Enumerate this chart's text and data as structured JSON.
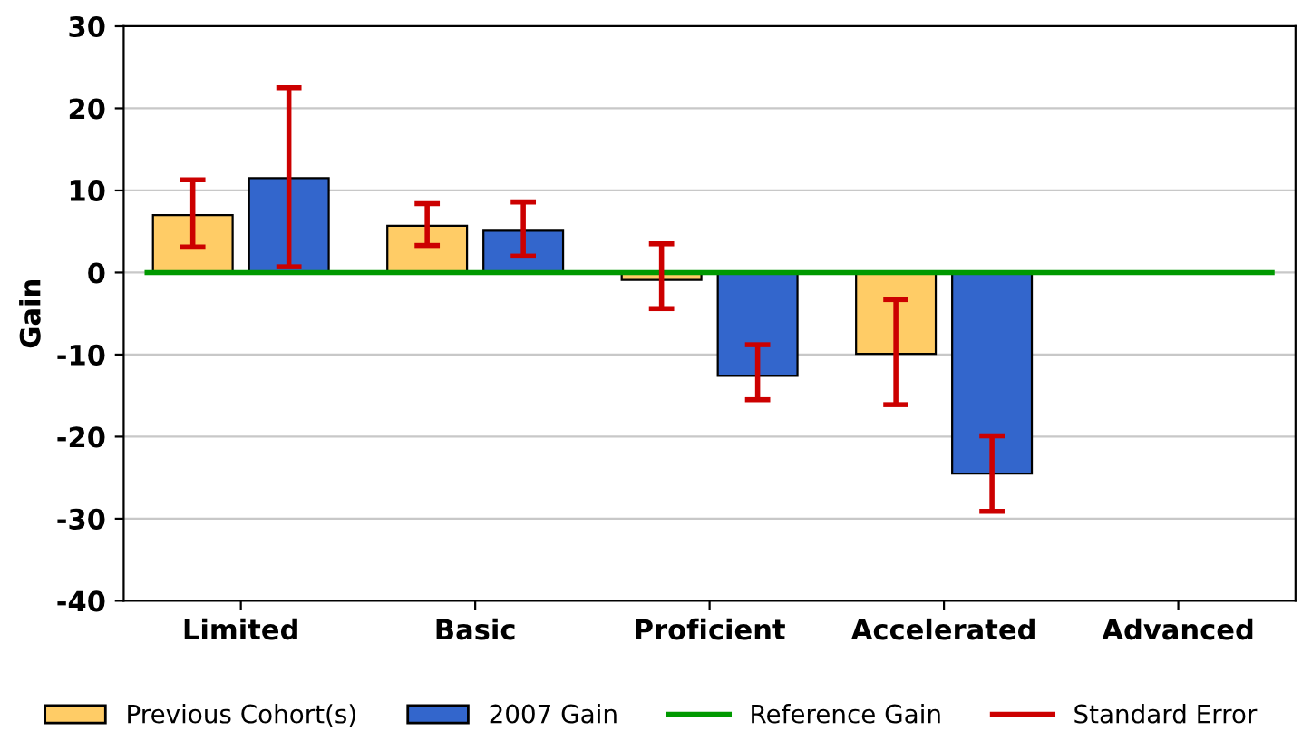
{
  "chart_data": {
    "type": "bar",
    "ylabel": "Gain",
    "categories": [
      "Limited",
      "Basic",
      "Proficient",
      "Accelerated",
      "Advanced"
    ],
    "series": [
      {
        "name": "Previous Cohort(s)",
        "color": "#ffcc66",
        "values": [
          7,
          5.7,
          -0.9,
          -9.9,
          null
        ],
        "errors": [
          [
            3.1,
            11.3
          ],
          [
            3.3,
            8.4
          ],
          [
            -4.4,
            3.5
          ],
          [
            -16.1,
            -3.3
          ],
          null
        ]
      },
      {
        "name": "2007 Gain",
        "color": "#3366cc",
        "values": [
          11.5,
          5.1,
          -12.6,
          -24.5,
          null
        ],
        "errors": [
          [
            0.7,
            22.5
          ],
          [
            2,
            8.6
          ],
          [
            -15.5,
            -8.8
          ],
          [
            -29.1,
            -19.9
          ],
          null
        ]
      }
    ],
    "ylim": [
      -40,
      30
    ],
    "yticks": [
      -40,
      -30,
      -20,
      -10,
      0,
      10,
      20,
      30
    ],
    "grid": "y",
    "legend": "bottom",
    "ref_lines": [
      {
        "axis": "y",
        "value": 0,
        "label": "Reference Gain",
        "color": "#009900"
      }
    ],
    "annotations": [
      "Standard Error"
    ]
  }
}
